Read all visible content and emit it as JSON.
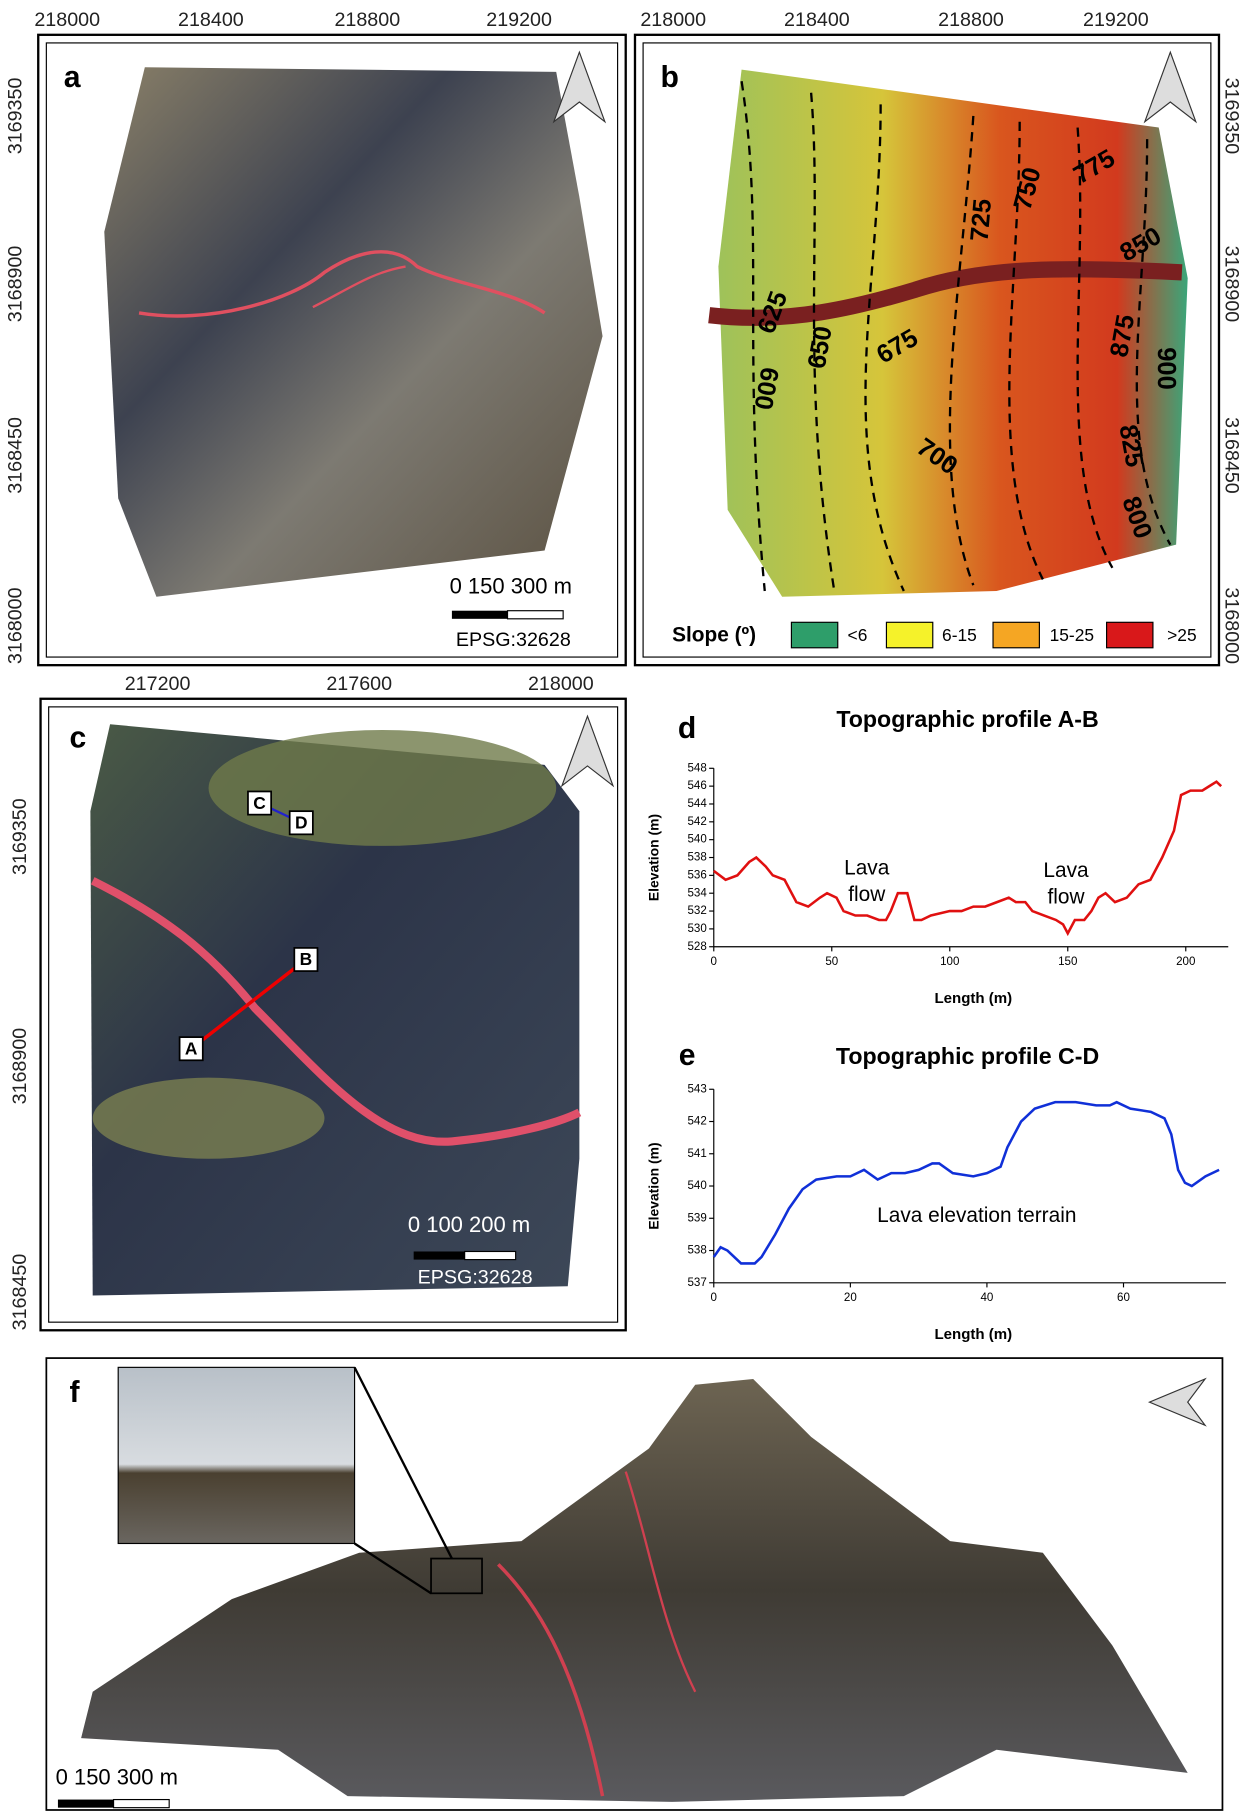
{
  "panel_a": {
    "label": "a",
    "x_coords": [
      "218000",
      "218400",
      "218800",
      "219200"
    ],
    "y_coords": [
      "3169350",
      "3168900",
      "3168450",
      "3168000"
    ],
    "scale": "0   150  300 m",
    "epsg": "EPSG:32628"
  },
  "panel_b": {
    "label": "b",
    "x_coords": [
      "218000",
      "218400",
      "218800",
      "219200"
    ],
    "y_coords": [
      "3169350",
      "3168900",
      "3168450",
      "3168000"
    ],
    "contour_labels": [
      625,
      650,
      675,
      700,
      725,
      750,
      775,
      850,
      875,
      900,
      825,
      800,
      600
    ],
    "legend": {
      "title": "Slope (º)",
      "items": [
        {
          "label": "<6",
          "color": "#2e9e6a"
        },
        {
          "label": "6-15",
          "color": "#f5f22a"
        },
        {
          "label": "15-25",
          "color": "#f5a623"
        },
        {
          "label": ">25",
          "color": "#d9181a"
        }
      ]
    }
  },
  "panel_c": {
    "label": "c",
    "x_coords": [
      "217200",
      "217600",
      "218000"
    ],
    "y_coords": [
      "3169350",
      "3168900",
      "3168450"
    ],
    "points": [
      "A",
      "B",
      "C",
      "D"
    ],
    "scale": "0   100 200 m",
    "epsg": "EPSG:32628"
  },
  "panel_f": {
    "label": "f",
    "scale": "0   150  300 m"
  },
  "chart_data": [
    {
      "type": "line",
      "panel": "d",
      "title": "Topographic profile A-B",
      "xlabel": "Length (m)",
      "ylabel": "Elevation (m)",
      "color": "#e01010",
      "annotations": [
        [
          "Lava",
          "flow"
        ],
        [
          "Lava",
          "flow"
        ]
      ],
      "x": [
        0,
        5,
        10,
        15,
        18,
        22,
        25,
        30,
        35,
        40,
        45,
        48,
        52,
        55,
        60,
        65,
        70,
        73,
        75,
        78,
        82,
        85,
        88,
        92,
        100,
        105,
        110,
        115,
        120,
        125,
        128,
        132,
        135,
        140,
        145,
        148,
        150,
        153,
        157,
        160,
        163,
        166,
        170,
        175,
        180,
        185,
        190,
        195,
        198,
        202,
        207,
        210,
        213,
        215
      ],
      "values": [
        536.5,
        535.5,
        536,
        537.5,
        538,
        537,
        536,
        535.5,
        533,
        532.5,
        533.5,
        534,
        533.5,
        532,
        531.5,
        531.5,
        531,
        531,
        532,
        534,
        534,
        531,
        531,
        531.5,
        532,
        532,
        532.5,
        532.5,
        533,
        533.5,
        533,
        533,
        532,
        531.5,
        531,
        530.5,
        529.5,
        531,
        531,
        532,
        533.5,
        534,
        533,
        533.5,
        535,
        535.5,
        538,
        541,
        545,
        545.5,
        545.5,
        546,
        546.5,
        546
      ],
      "xlim": [
        0,
        218
      ],
      "xticks": [
        0,
        50,
        100,
        150,
        200
      ],
      "ylim": [
        528,
        548
      ],
      "yticks": [
        528,
        530,
        532,
        534,
        536,
        538,
        540,
        542,
        544,
        546,
        548
      ]
    },
    {
      "type": "line",
      "panel": "e",
      "title": "Topographic profile C-D",
      "xlabel": "Length (m)",
      "ylabel": "Elevation (m)",
      "color": "#1030d8",
      "annotations": [
        [
          "Lava elevation terrain"
        ]
      ],
      "x": [
        0,
        1,
        2,
        4,
        6,
        7,
        9,
        11,
        13,
        15,
        18,
        20,
        22,
        24,
        26,
        28,
        30,
        32,
        33,
        35,
        38,
        40,
        42,
        43,
        45,
        47,
        50,
        53,
        56,
        58,
        59,
        61,
        64,
        66,
        67,
        68,
        69,
        70,
        72,
        74
      ],
      "values": [
        537.8,
        538.1,
        538,
        537.6,
        537.6,
        537.8,
        538.5,
        539.3,
        539.9,
        540.2,
        540.3,
        540.3,
        540.5,
        540.2,
        540.4,
        540.4,
        540.5,
        540.7,
        540.7,
        540.4,
        540.3,
        540.4,
        540.6,
        541.2,
        542,
        542.4,
        542.6,
        542.6,
        542.5,
        542.5,
        542.6,
        542.4,
        542.3,
        542.1,
        541.6,
        540.5,
        540.1,
        540,
        540.3,
        540.5
      ],
      "xlim": [
        0,
        75
      ],
      "xticks": [
        0,
        20,
        40,
        60
      ],
      "ylim": [
        537,
        543
      ],
      "yticks": [
        537,
        538,
        539,
        540,
        541,
        542,
        543
      ]
    }
  ]
}
